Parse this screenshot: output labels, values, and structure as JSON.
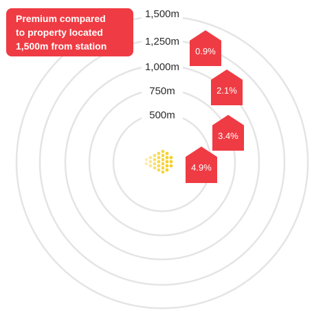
{
  "rings": [
    {
      "distance": "1,500m"
    },
    {
      "distance": "1,250m"
    },
    {
      "distance": "1,000m"
    },
    {
      "distance": "750m"
    },
    {
      "distance": "500m"
    }
  ],
  "premiums": [
    {
      "value": "0.9%"
    },
    {
      "value": "2.1%"
    },
    {
      "value": "3.4%"
    },
    {
      "value": "4.9%"
    }
  ],
  "callout": {
    "lines": [
      "Premium compared",
      "to property located",
      "1,500m from station"
    ]
  },
  "colors": {
    "accent_red": "#ef3b43",
    "station_yellow": "#f6d027",
    "ring_grey": "#e4e4e4"
  },
  "icons": {
    "station": "station-dots-icon",
    "property": "house-icon"
  }
}
